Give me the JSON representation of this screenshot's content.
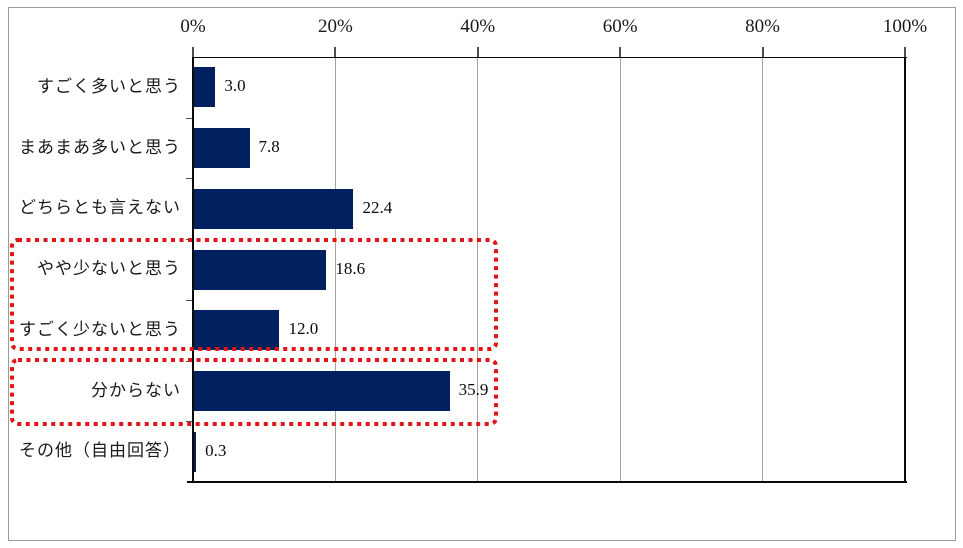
{
  "chart_data": {
    "type": "bar",
    "orientation": "horizontal",
    "title": "",
    "xlabel": "",
    "ylabel": "",
    "xlim": [
      0,
      100
    ],
    "x_tick_labels": [
      "0%",
      "20%",
      "40%",
      "60%",
      "80%",
      "100%"
    ],
    "grid": true,
    "legend": false,
    "categories": [
      "すごく多いと思う",
      "まあまあ多いと思う",
      "どちらとも言えない",
      "やや少ないと思う",
      "すごく少ないと思う",
      "分からない",
      "その他（自由回答）"
    ],
    "values": [
      3.0,
      7.8,
      22.4,
      18.6,
      12.0,
      35.9,
      0.3
    ],
    "value_labels": [
      "3.0",
      "7.8",
      "22.4",
      "18.6",
      "12.0",
      "35.9",
      "0.3"
    ],
    "bar_color": "#002060",
    "gridline_color": "#a3a3a3",
    "axis_color": "#0a0a0a",
    "outer_border_color": "#9b9b9b",
    "highlight_color": "#e01616",
    "highlighted_groups": [
      {
        "rows": [
          3,
          4
        ],
        "labels": [
          "やや少ないと思う",
          "すごく少ないと思う"
        ]
      },
      {
        "rows": [
          5
        ],
        "labels": [
          "分からない"
        ]
      }
    ]
  }
}
